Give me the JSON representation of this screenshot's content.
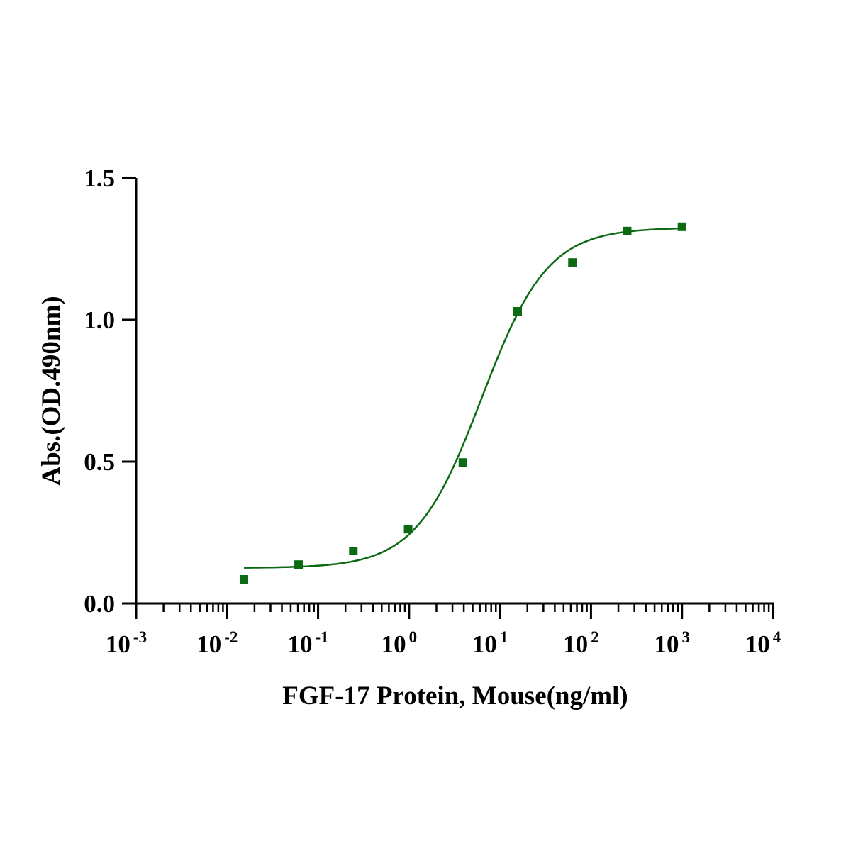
{
  "chart_data": {
    "type": "scatter",
    "title": "",
    "xlabel": "FGF-17 Protein, Mouse(ng/ml)",
    "ylabel": "Abs.(OD.490nm)",
    "xscale": "log",
    "xlim": [
      0.001,
      10000
    ],
    "ylim": [
      0,
      1.5
    ],
    "x_ticks": [
      {
        "base": "10",
        "exp": "-3",
        "value": 0.001
      },
      {
        "base": "10",
        "exp": "-2",
        "value": 0.01
      },
      {
        "base": "10",
        "exp": "-1",
        "value": 0.1
      },
      {
        "base": "10",
        "exp": "0",
        "value": 1
      },
      {
        "base": "10",
        "exp": "1",
        "value": 10
      },
      {
        "base": "10",
        "exp": "2",
        "value": 100
      },
      {
        "base": "10",
        "exp": "3",
        "value": 1000
      },
      {
        "base": "10",
        "exp": "4",
        "value": 10000
      }
    ],
    "y_ticks": [
      {
        "label": "0.0",
        "value": 0
      },
      {
        "label": "0.5",
        "value": 0.5
      },
      {
        "label": "1.0",
        "value": 1.0
      },
      {
        "label": "1.5",
        "value": 1.5
      }
    ],
    "grid": false,
    "series": [
      {
        "name": "FGF-17 Protein, Mouse",
        "color": "#0b6a12",
        "marker": "square",
        "x": [
          0.0153,
          0.061,
          0.244,
          0.977,
          3.906,
          15.625,
          62.5,
          250,
          1000
        ],
        "y": [
          0.085,
          0.137,
          0.185,
          0.262,
          0.497,
          1.03,
          1.202,
          1.313,
          1.328
        ],
        "fit": {
          "model": "4PL",
          "bottom": 0.125,
          "top": 1.325,
          "ec50": 6.3,
          "hill": 1.2,
          "x_range": [
            0.0153,
            1000
          ]
        }
      }
    ]
  }
}
